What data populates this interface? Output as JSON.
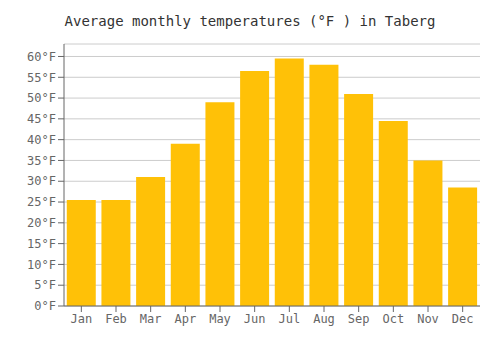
{
  "chart_data": {
    "type": "bar",
    "title": "Average monthly temperatures (°F ) in Taberg",
    "categories": [
      "Jan",
      "Feb",
      "Mar",
      "Apr",
      "May",
      "Jun",
      "Jul",
      "Aug",
      "Sep",
      "Oct",
      "Nov",
      "Dec"
    ],
    "values": [
      25.5,
      25.5,
      31.0,
      39.0,
      49.0,
      56.5,
      59.5,
      58.0,
      51.0,
      44.5,
      35.0,
      28.5
    ],
    "color": "#FFC107",
    "ylim": [
      0,
      63
    ],
    "yticks": [
      {
        "value": 0,
        "label": "0°F"
      },
      {
        "value": 5,
        "label": "5°F"
      },
      {
        "value": 10,
        "label": "10°F"
      },
      {
        "value": 15,
        "label": "15°F"
      },
      {
        "value": 20,
        "label": "20°F"
      },
      {
        "value": 25,
        "label": "25°F"
      },
      {
        "value": 30,
        "label": "30°F"
      },
      {
        "value": 35,
        "label": "35°F"
      },
      {
        "value": 40,
        "label": "40°F"
      },
      {
        "value": 45,
        "label": "45°F"
      },
      {
        "value": 50,
        "label": "50°F"
      },
      {
        "value": 55,
        "label": "55°F"
      },
      {
        "value": 60,
        "label": "60°F"
      }
    ],
    "grid": true
  }
}
